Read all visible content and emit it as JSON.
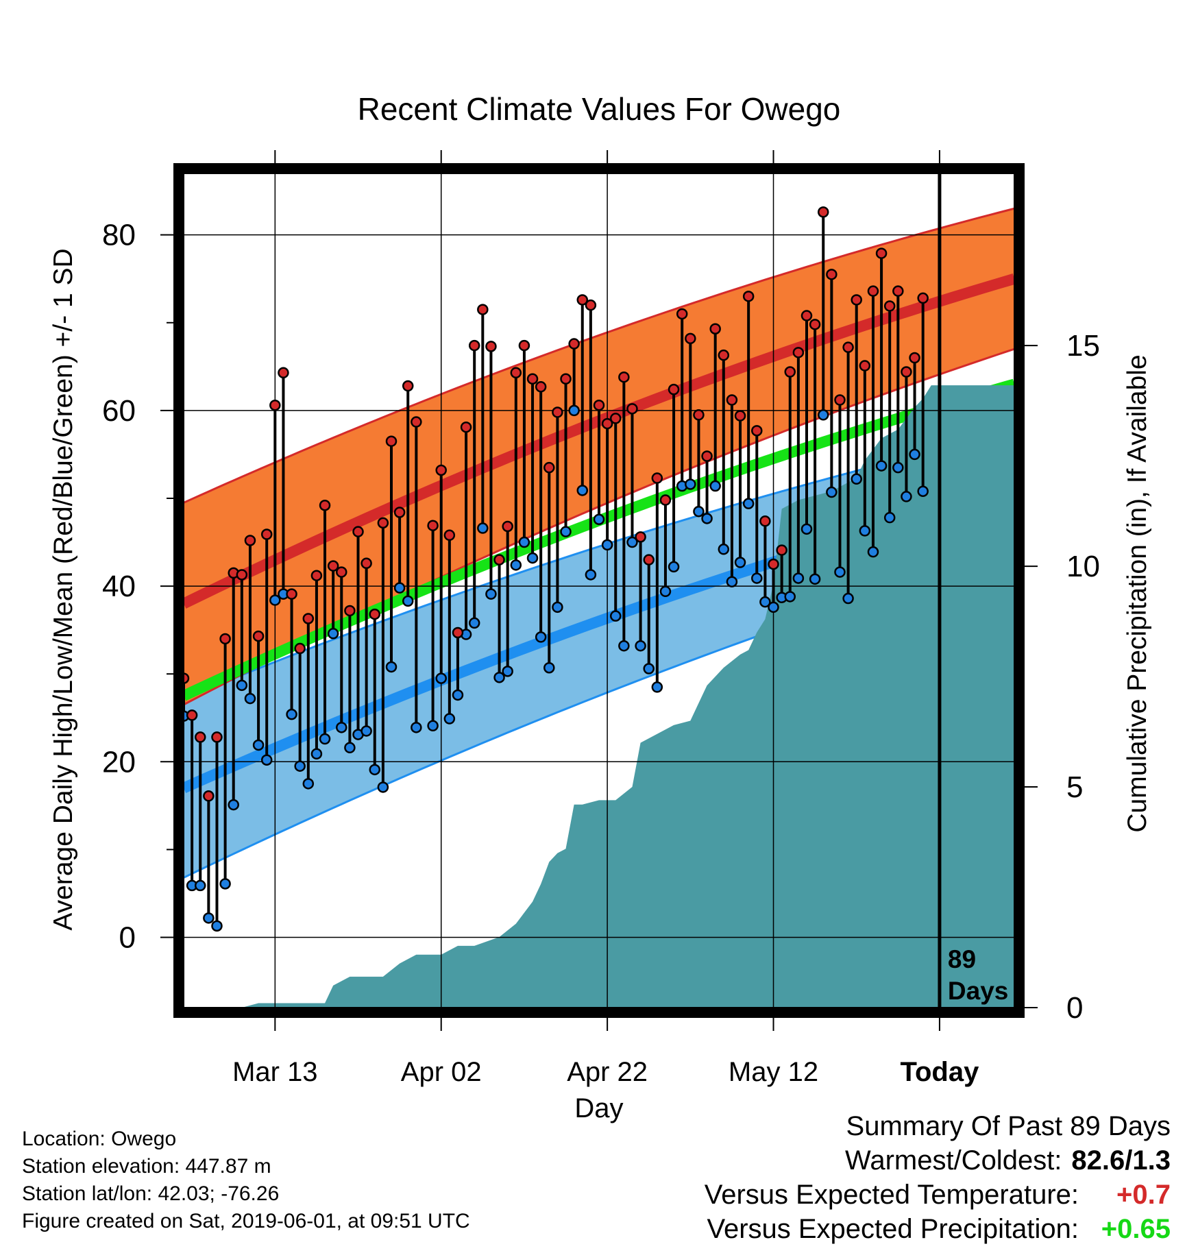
{
  "chart_data": {
    "type": "line",
    "title": "Recent Climate Values For Owego",
    "xlabel": "Day",
    "ylabel": "Average Daily High/Low/Mean (Red/Blue/Green) +/- 1 SD",
    "y2label": "Cumulative Precipitation (in), If Available",
    "x_ticks": [
      "Mar 13",
      "Apr 02",
      "Apr 22",
      "May 12",
      "Today"
    ],
    "x_tick_days": [
      13,
      33,
      53,
      73,
      93
    ],
    "xlim": [
      2,
      102
    ],
    "ylim": [
      -8,
      87
    ],
    "y_ticks": [
      0,
      20,
      40,
      60,
      80
    ],
    "y2lim": [
      0,
      18.9
    ],
    "y2_ticks": [
      0,
      5,
      10,
      15
    ],
    "today_day": 93,
    "today_label": "89 Days",
    "grid": true,
    "normals": {
      "mean_high": {
        "start": 38,
        "end": 75,
        "color": "#d42a2a"
      },
      "mean_high_sd": [
        11.5,
        8
      ],
      "mean": {
        "start": 27.5,
        "end": 63,
        "color": "#16e316"
      },
      "mean_low": {
        "start": 17,
        "end": 50.8,
        "color": "#1f8ff0"
      },
      "mean_low_sd": [
        10.2,
        6.8
      ],
      "high_band_color": "#f57b33",
      "low_band_color": "#7bbde6"
    },
    "daily": {
      "start_day": 2,
      "highs": [
        29.5,
        25.3,
        22.8,
        16.1,
        22.8,
        34.0,
        41.5,
        41.3,
        45.2,
        34.3,
        45.9,
        60.6,
        64.3,
        39.1,
        32.9,
        36.3,
        41.2,
        49.2,
        42.3,
        41.6,
        37.2,
        46.2,
        42.6,
        36.8,
        47.2,
        56.5,
        48.4,
        62.8,
        58.7,
        null,
        46.9,
        53.2,
        45.8,
        34.7,
        58.1,
        67.4,
        71.5,
        67.3,
        43.0,
        46.8,
        64.3,
        67.4,
        63.6,
        62.7,
        53.5,
        59.8,
        63.6,
        67.6,
        72.6,
        72.0,
        60.6,
        58.5,
        59.1,
        63.8,
        60.2,
        45.6,
        43.0,
        52.3,
        49.8,
        62.4,
        71.0,
        68.2,
        59.5,
        54.8,
        69.3,
        66.3,
        61.2,
        59.4,
        73.0,
        57.7,
        47.4,
        42.5,
        44.1,
        64.4,
        66.6,
        70.8,
        69.8,
        82.6,
        75.5,
        61.2,
        67.2,
        72.6,
        65.1,
        73.6,
        77.9,
        71.9,
        73.6,
        64.4,
        66.0,
        72.8
      ],
      "lows": [
        25.2,
        5.9,
        5.9,
        2.2,
        1.3,
        6.1,
        15.1,
        28.7,
        27.2,
        21.9,
        20.2,
        38.4,
        39.1,
        25.4,
        19.5,
        17.5,
        20.9,
        22.6,
        34.6,
        23.9,
        21.6,
        23.1,
        23.5,
        19.1,
        17.1,
        30.8,
        39.8,
        38.3,
        23.9,
        null,
        24.1,
        29.5,
        24.9,
        27.6,
        34.5,
        35.8,
        46.6,
        39.1,
        29.6,
        30.3,
        42.4,
        45.0,
        43.2,
        34.2,
        30.7,
        37.6,
        46.2,
        60.0,
        50.9,
        41.3,
        47.6,
        44.7,
        36.6,
        33.2,
        45.0,
        33.2,
        30.6,
        28.5,
        39.4,
        42.2,
        51.4,
        51.6,
        48.5,
        47.7,
        51.4,
        44.2,
        40.5,
        42.7,
        49.4,
        40.9,
        38.2,
        37.6,
        38.7,
        38.8,
        40.9,
        46.5,
        40.8,
        59.5,
        50.7,
        41.6,
        38.6,
        52.2,
        46.3,
        43.9,
        53.7,
        47.8,
        53.5,
        50.2,
        55.0,
        50.8
      ]
    },
    "precip": {
      "x": [
        2,
        9,
        11,
        19,
        20,
        22,
        26,
        28,
        30,
        33,
        35,
        37,
        40,
        42,
        44,
        45,
        46,
        47,
        48,
        49,
        50,
        52,
        54,
        56,
        57,
        59,
        61,
        63,
        65,
        67,
        69,
        70,
        71,
        72,
        73,
        74,
        76,
        78,
        80,
        82,
        83,
        84,
        86,
        87,
        88,
        90,
        91,
        92,
        93,
        102
      ],
      "y": [
        0,
        0,
        0.1,
        0.1,
        0.5,
        0.7,
        0.7,
        1.0,
        1.2,
        1.2,
        1.4,
        1.4,
        1.6,
        1.9,
        2.4,
        2.8,
        3.3,
        3.5,
        3.6,
        4.6,
        4.6,
        4.7,
        4.7,
        5.0,
        6.0,
        6.2,
        6.4,
        6.5,
        7.3,
        7.7,
        8.0,
        8.1,
        8.5,
        8.8,
        9.6,
        11.3,
        11.5,
        11.6,
        11.7,
        11.9,
        12.0,
        12.4,
        12.9,
        13.0,
        13.1,
        13.6,
        13.8,
        14.1,
        14.1,
        14.1
      ]
    }
  },
  "footer": {
    "location": "Location: Owego",
    "elevation": "Station elevation: 447.87 m",
    "latlon": "Station lat/lon: 42.03; -76.26",
    "created": "Figure created on Sat, 2019-06-01, at 09:51 UTC"
  },
  "summary": {
    "title": "Summary Of Past 89 Days",
    "warm_cold_label": "Warmest/Coldest:",
    "warm_cold_value": "82.6/1.3",
    "temp_label": "Versus Expected Temperature:",
    "temp_value": "+0.7",
    "temp_color": "#d42a2a",
    "precip_label": "Versus Expected Precipitation:",
    "precip_value": "+0.65",
    "precip_color": "#16d816"
  }
}
